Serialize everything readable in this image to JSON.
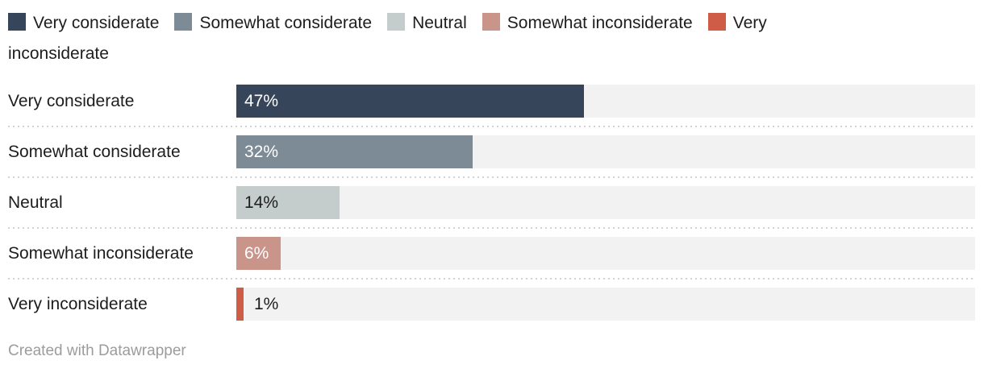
{
  "chart_data": {
    "type": "bar",
    "orientation": "horizontal",
    "title": "",
    "xlabel": "",
    "ylabel": "",
    "unit": "%",
    "xlim": [
      0,
      100
    ],
    "grid": false,
    "legend_position": "top",
    "categories": [
      "Very considerate",
      "Somewhat considerate",
      "Neutral",
      "Somewhat inconsiderate",
      "Very inconsiderate"
    ],
    "values": [
      47,
      32,
      14,
      6,
      1
    ],
    "value_labels": [
      "47%",
      "32%",
      "14%",
      "6%",
      "1%"
    ],
    "bar_colors": [
      "#36455a",
      "#7c8b96",
      "#c5cdcc",
      "#c9948a",
      "#cf5c47"
    ],
    "track_color": "#f2f2f2"
  },
  "legend": {
    "items": [
      {
        "label": "Very considerate",
        "color": "#36455a"
      },
      {
        "label": "Somewhat considerate",
        "color": "#7c8b96"
      },
      {
        "label": "Neutral",
        "color": "#c5cdcc"
      },
      {
        "label": "Somewhat inconsiderate",
        "color": "#c9948a"
      },
      {
        "label": "Very inconsiderate",
        "color": "#cf5c47"
      }
    ]
  },
  "rows": [
    {
      "label": "Very considerate",
      "value_label": "47%",
      "width": "47%",
      "color": "#36455a",
      "value_color": "#ffffff",
      "value_left": "10px"
    },
    {
      "label": "Somewhat considerate",
      "value_label": "32%",
      "width": "32%",
      "color": "#7c8b96",
      "value_color": "#ffffff",
      "value_left": "10px"
    },
    {
      "label": "Neutral",
      "value_label": "14%",
      "width": "14%",
      "color": "#c5cdcc",
      "value_color": "#1d1d1d",
      "value_left": "10px"
    },
    {
      "label": "Somewhat inconsiderate",
      "value_label": "6%",
      "width": "6%",
      "color": "#c9948a",
      "value_color": "#ffffff",
      "value_left": "10px"
    },
    {
      "label": "Very inconsiderate",
      "value_label": "1%",
      "width": "1%",
      "color": "#cf5c47",
      "value_color": "#1d1d1d",
      "value_left": "22px"
    }
  ],
  "footer": {
    "credit": "Created with Datawrapper"
  }
}
